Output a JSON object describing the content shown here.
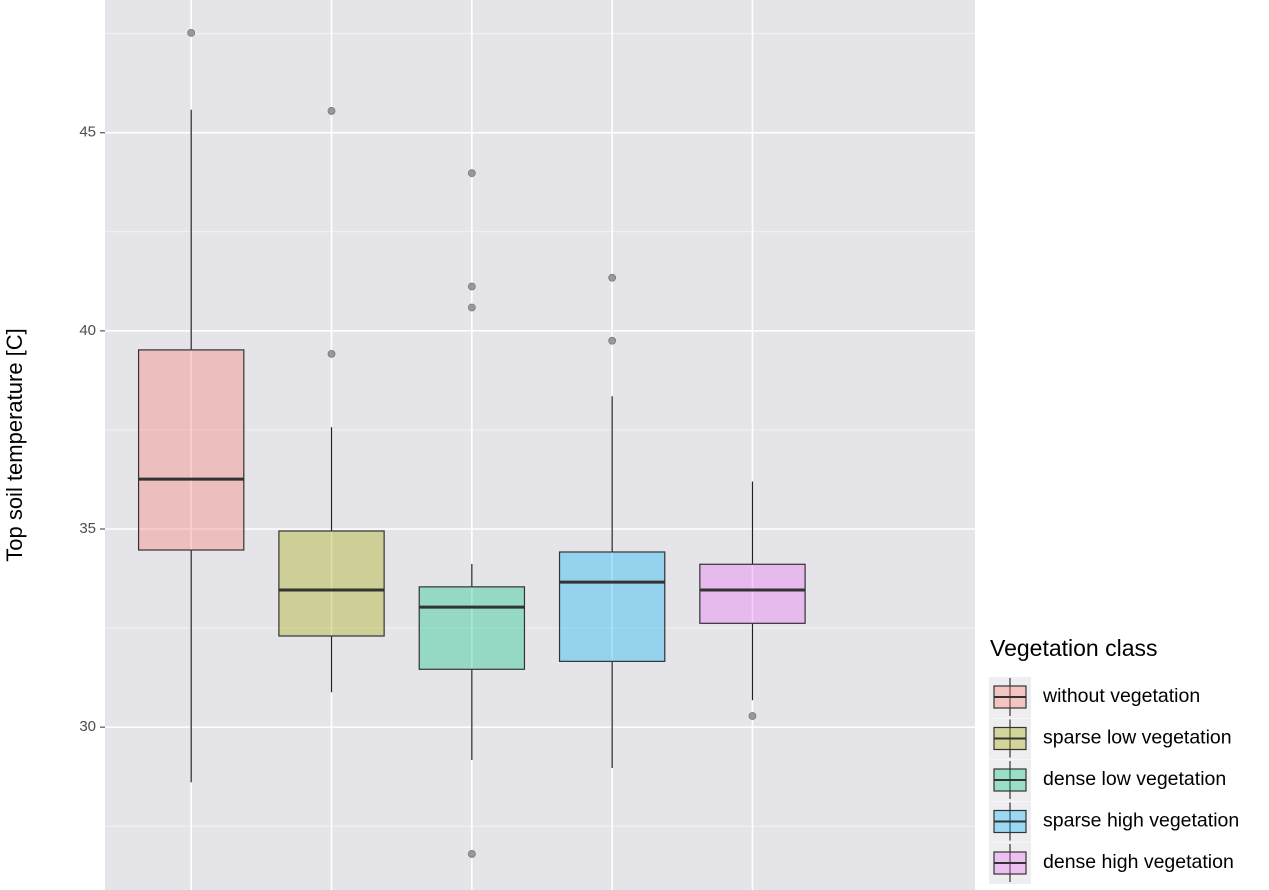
{
  "chart_data": {
    "type": "box",
    "y_label": "Top soil temperature [C]",
    "legend_title": "Vegetation class",
    "ylim": [
      25.89,
      48.35
    ],
    "yticks": [
      30,
      35,
      40,
      45
    ],
    "grid": true,
    "legend": "right",
    "series": [
      {
        "name": "without vegetation",
        "color": "#f8766d",
        "min": 28.61,
        "q1": 34.47,
        "median": 36.26,
        "q3": 39.52,
        "max": 45.58,
        "outliers": [
          47.52
        ]
      },
      {
        "name": "sparse low vegetation",
        "color": "#a3a500",
        "min": 30.88,
        "q1": 32.3,
        "median": 33.46,
        "q3": 34.95,
        "max": 37.57,
        "outliers": [
          45.55,
          39.42
        ]
      },
      {
        "name": "dense low vegetation",
        "color": "#00bf7d",
        "min": 29.17,
        "q1": 31.46,
        "median": 33.03,
        "q3": 33.54,
        "max": 34.12,
        "outliers": [
          43.98,
          41.12,
          40.59,
          26.8
        ]
      },
      {
        "name": "sparse high vegetation",
        "color": "#00b0f6",
        "min": 28.97,
        "q1": 31.66,
        "median": 33.66,
        "q3": 34.42,
        "max": 38.35,
        "outliers": [
          41.34,
          39.75
        ]
      },
      {
        "name": "dense high vegetation",
        "color": "#e76bf3",
        "min": 30.68,
        "q1": 32.62,
        "median": 33.46,
        "q3": 34.11,
        "max": 36.2,
        "outliers": [
          30.28
        ]
      }
    ]
  }
}
